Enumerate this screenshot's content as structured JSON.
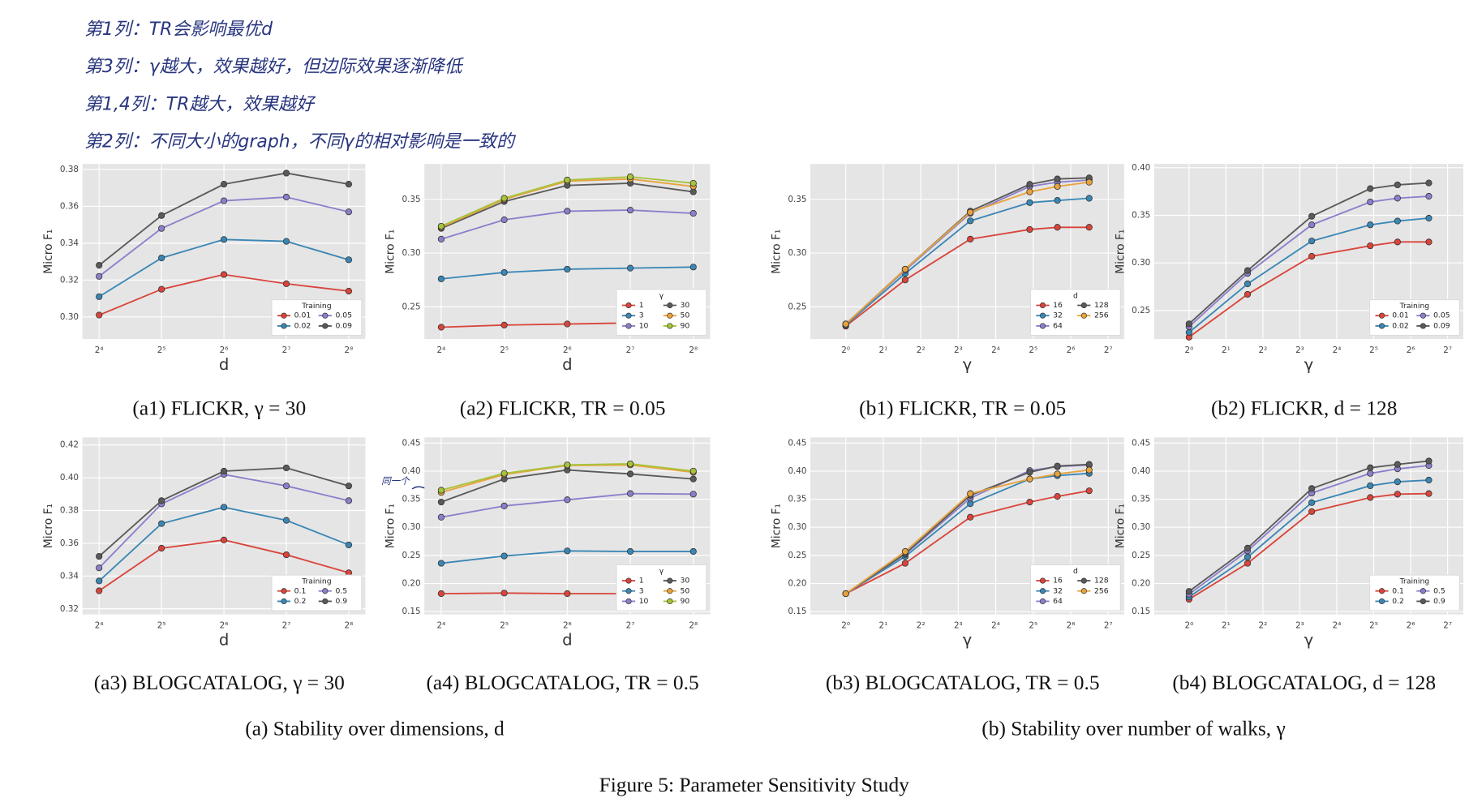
{
  "notes": [
    "第1列：TR会影响最优d",
    "第3列：γ越大，效果越好，但边际效果逐渐降低",
    "第1,4列：TR越大，效果越好",
    "第2列：不同大小的graph，不同γ的相对影响是一致的"
  ],
  "margin_note": "同一个",
  "group_captions": [
    "(a) Stability over dimensions, d",
    "(b) Stability over number of walks, γ"
  ],
  "figure_caption": "Figure 5: Parameter Sensitivity Study",
  "chart_data": [
    {
      "type": "line",
      "title": "(a1) FLICKR, γ = 30",
      "xlabel": "d",
      "ylabel": "Micro F₁",
      "legend_title": "Training",
      "xscale": "log",
      "x": [
        16,
        32,
        64,
        128,
        256
      ],
      "xlim": [
        13.3,
        308
      ],
      "xticks": [
        {
          "value": 16,
          "label": "2⁴"
        },
        {
          "value": 32,
          "label": "2⁵"
        },
        {
          "value": 64,
          "label": "2⁶"
        },
        {
          "value": 128,
          "label": "2⁷"
        },
        {
          "value": 256,
          "label": "2⁸"
        }
      ],
      "ylim": [
        0.288,
        0.383
      ],
      "yticks": [
        {
          "value": 0.3,
          "label": "0.30"
        },
        0.32,
        0.34,
        0.36,
        0.38
      ],
      "series": [
        {
          "name": "0.01",
          "color": "#d9453b",
          "values": [
            0.301,
            0.315,
            0.323,
            0.318,
            0.314
          ]
        },
        {
          "name": "0.02",
          "color": "#3a87b5",
          "values": [
            0.311,
            0.332,
            0.342,
            0.341,
            0.331
          ]
        },
        {
          "name": "0.05",
          "color": "#8b7fcc",
          "values": [
            0.322,
            0.348,
            0.363,
            0.365,
            0.357
          ]
        },
        {
          "name": "0.09",
          "color": "#5a5a5a",
          "values": [
            0.328,
            0.355,
            0.372,
            0.378,
            0.372
          ]
        }
      ]
    },
    {
      "type": "line",
      "title": "(a2) FLICKR, TR = 0.05",
      "xlabel": "d",
      "ylabel": "Micro F₁",
      "legend_title": "γ",
      "xscale": "log",
      "x": [
        16,
        32,
        64,
        128,
        256
      ],
      "xlim": [
        13.3,
        308
      ],
      "xticks": [
        {
          "value": 16,
          "label": "2⁴"
        },
        {
          "value": 32,
          "label": "2⁵"
        },
        {
          "value": 64,
          "label": "2⁶"
        },
        {
          "value": 128,
          "label": "2⁷"
        },
        {
          "value": 256,
          "label": "2⁸"
        }
      ],
      "ylim": [
        0.22,
        0.383
      ],
      "yticks": [
        0.25,
        {
          "value": 0.3,
          "label": "0.30"
        },
        0.35
      ],
      "series": [
        {
          "name": "1",
          "color": "#d9453b",
          "values": [
            0.231,
            0.233,
            0.234,
            0.235,
            0.236
          ]
        },
        {
          "name": "3",
          "color": "#3a87b5",
          "values": [
            0.276,
            0.282,
            0.285,
            0.286,
            0.287
          ]
        },
        {
          "name": "10",
          "color": "#8b7fcc",
          "values": [
            0.313,
            0.331,
            0.339,
            0.34,
            0.337
          ]
        },
        {
          "name": "30",
          "color": "#5a5a5a",
          "values": [
            0.323,
            0.348,
            0.363,
            0.365,
            0.357
          ]
        },
        {
          "name": "50",
          "color": "#e8a33c",
          "values": [
            0.324,
            0.35,
            0.367,
            0.369,
            0.362
          ]
        },
        {
          "name": "90",
          "color": "#a6c43a",
          "values": [
            0.325,
            0.351,
            0.368,
            0.371,
            0.365
          ]
        }
      ]
    },
    {
      "type": "line",
      "title": "(b1) FLICKR, TR = 0.05",
      "xlabel": "γ",
      "ylabel": "Micro F₁",
      "legend_title": "d",
      "xscale": "log",
      "x": [
        1,
        3,
        10,
        30,
        50,
        90
      ],
      "xlim": [
        0.52,
        172
      ],
      "xticks": [
        {
          "value": 1,
          "label": "2⁰"
        },
        {
          "value": 2,
          "label": "2¹"
        },
        {
          "value": 4,
          "label": "2²"
        },
        {
          "value": 8,
          "label": "2³"
        },
        {
          "value": 16,
          "label": "2⁴"
        },
        {
          "value": 32,
          "label": "2⁵"
        },
        {
          "value": 64,
          "label": "2⁶"
        },
        {
          "value": 128,
          "label": "2⁷"
        }
      ],
      "ylim": [
        0.22,
        0.383
      ],
      "yticks": [
        0.25,
        {
          "value": 0.3,
          "label": "0.30"
        },
        0.35
      ],
      "series": [
        {
          "name": "16",
          "color": "#d9453b",
          "values": [
            0.232,
            0.275,
            0.313,
            0.322,
            0.324,
            0.324
          ]
        },
        {
          "name": "32",
          "color": "#3a87b5",
          "values": [
            0.233,
            0.281,
            0.33,
            0.347,
            0.349,
            0.351
          ]
        },
        {
          "name": "64",
          "color": "#8b7fcc",
          "values": [
            0.234,
            0.284,
            0.337,
            0.362,
            0.366,
            0.368
          ]
        },
        {
          "name": "128",
          "color": "#5a5a5a",
          "values": [
            0.234,
            0.285,
            0.339,
            0.364,
            0.369,
            0.37
          ]
        },
        {
          "name": "256",
          "color": "#e8a33c",
          "values": [
            0.234,
            0.285,
            0.338,
            0.357,
            0.362,
            0.366
          ]
        }
      ]
    },
    {
      "type": "line",
      "title": "(b2) FLICKR, d = 128",
      "xlabel": "γ",
      "ylabel": "Micro F₁",
      "legend_title": "Training",
      "xscale": "log",
      "x": [
        1,
        3,
        10,
        30,
        50,
        90
      ],
      "xlim": [
        0.52,
        172
      ],
      "xticks": [
        {
          "value": 1,
          "label": "2⁰"
        },
        {
          "value": 2,
          "label": "2¹"
        },
        {
          "value": 4,
          "label": "2²"
        },
        {
          "value": 8,
          "label": "2³"
        },
        {
          "value": 16,
          "label": "2⁴"
        },
        {
          "value": 32,
          "label": "2⁵"
        },
        {
          "value": 64,
          "label": "2⁶"
        },
        {
          "value": 128,
          "label": "2⁷"
        }
      ],
      "ylim": [
        0.22,
        0.404
      ],
      "yticks": [
        0.25,
        {
          "value": 0.3,
          "label": "0.30"
        },
        0.35,
        {
          "value": 0.4,
          "label": "0.40"
        }
      ],
      "series": [
        {
          "name": "0.01",
          "color": "#d9453b",
          "values": [
            0.222,
            0.267,
            0.307,
            0.318,
            0.322,
            0.322
          ]
        },
        {
          "name": "0.02",
          "color": "#3a87b5",
          "values": [
            0.227,
            0.278,
            0.323,
            0.34,
            0.344,
            0.347
          ]
        },
        {
          "name": "0.05",
          "color": "#8b7fcc",
          "values": [
            0.233,
            0.289,
            0.34,
            0.364,
            0.368,
            0.37
          ]
        },
        {
          "name": "0.09",
          "color": "#5a5a5a",
          "values": [
            0.236,
            0.292,
            0.349,
            0.378,
            0.382,
            0.384
          ]
        }
      ]
    },
    {
      "type": "line",
      "title": "(a3) BLOGCATALOG, γ = 30",
      "xlabel": "d",
      "ylabel": "Micro F₁",
      "legend_title": "Training",
      "xscale": "log",
      "x": [
        16,
        32,
        64,
        128,
        256
      ],
      "xlim": [
        13.3,
        308
      ],
      "xticks": [
        {
          "value": 16,
          "label": "2⁴"
        },
        {
          "value": 32,
          "label": "2⁵"
        },
        {
          "value": 64,
          "label": "2⁶"
        },
        {
          "value": 128,
          "label": "2⁷"
        },
        {
          "value": 256,
          "label": "2⁸"
        }
      ],
      "ylim": [
        0.3166,
        0.4246
      ],
      "yticks": [
        0.32,
        0.34,
        0.36,
        0.38,
        {
          "value": 0.4,
          "label": "0.40"
        },
        0.42
      ],
      "series": [
        {
          "name": "0.1",
          "color": "#d9453b",
          "values": [
            0.331,
            0.357,
            0.362,
            0.353,
            0.342
          ]
        },
        {
          "name": "0.2",
          "color": "#3a87b5",
          "values": [
            0.337,
            0.372,
            0.382,
            0.374,
            0.359
          ]
        },
        {
          "name": "0.5",
          "color": "#8b7fcc",
          "values": [
            0.345,
            0.384,
            0.402,
            0.395,
            0.386
          ]
        },
        {
          "name": "0.9",
          "color": "#5a5a5a",
          "values": [
            0.352,
            0.386,
            0.404,
            0.406,
            0.395
          ]
        }
      ]
    },
    {
      "type": "line",
      "title": "(a4) BLOGCATALOG, TR = 0.5",
      "xlabel": "d",
      "ylabel": "Micro F₁",
      "legend_title": "γ",
      "xscale": "log",
      "x": [
        16,
        32,
        64,
        128,
        256
      ],
      "xlim": [
        13.3,
        308
      ],
      "xticks": [
        {
          "value": 16,
          "label": "2⁴"
        },
        {
          "value": 32,
          "label": "2⁵"
        },
        {
          "value": 64,
          "label": "2⁶"
        },
        {
          "value": 128,
          "label": "2⁷"
        },
        {
          "value": 256,
          "label": "2⁸"
        }
      ],
      "ylim": [
        0.145,
        0.46
      ],
      "yticks": [
        0.15,
        {
          "value": 0.2,
          "label": "0.20"
        },
        0.25,
        {
          "value": 0.3,
          "label": "0.30"
        },
        0.35,
        {
          "value": 0.4,
          "label": "0.40"
        },
        0.45
      ],
      "series": [
        {
          "name": "1",
          "color": "#d9453b",
          "values": [
            0.182,
            0.183,
            0.182,
            0.182,
            0.183
          ]
        },
        {
          "name": "3",
          "color": "#3a87b5",
          "values": [
            0.236,
            0.249,
            0.258,
            0.257,
            0.257
          ]
        },
        {
          "name": "10",
          "color": "#8b7fcc",
          "values": [
            0.318,
            0.338,
            0.349,
            0.36,
            0.359
          ]
        },
        {
          "name": "30",
          "color": "#5a5a5a",
          "values": [
            0.345,
            0.386,
            0.402,
            0.395,
            0.386
          ]
        },
        {
          "name": "50",
          "color": "#e8a33c",
          "values": [
            0.362,
            0.394,
            0.41,
            0.411,
            0.398
          ]
        },
        {
          "name": "90",
          "color": "#a6c43a",
          "values": [
            0.366,
            0.396,
            0.411,
            0.413,
            0.4
          ]
        }
      ]
    },
    {
      "type": "line",
      "title": "(b3) BLOGCATALOG, TR = 0.5",
      "xlabel": "γ",
      "ylabel": "Micro F₁",
      "legend_title": "d",
      "xscale": "log",
      "x": [
        1,
        3,
        10,
        30,
        50,
        90
      ],
      "xlim": [
        0.52,
        172
      ],
      "xticks": [
        {
          "value": 1,
          "label": "2⁰"
        },
        {
          "value": 2,
          "label": "2¹"
        },
        {
          "value": 4,
          "label": "2²"
        },
        {
          "value": 8,
          "label": "2³"
        },
        {
          "value": 16,
          "label": "2⁴"
        },
        {
          "value": 32,
          "label": "2⁵"
        },
        {
          "value": 64,
          "label": "2⁶"
        },
        {
          "value": 128,
          "label": "2⁷"
        }
      ],
      "ylim": [
        0.145,
        0.46
      ],
      "yticks": [
        0.15,
        {
          "value": 0.2,
          "label": "0.20"
        },
        0.25,
        {
          "value": 0.3,
          "label": "0.30"
        },
        0.35,
        {
          "value": 0.4,
          "label": "0.40"
        },
        0.45
      ],
      "series": [
        {
          "name": "16",
          "color": "#d9453b",
          "values": [
            0.182,
            0.236,
            0.318,
            0.345,
            0.355,
            0.365
          ]
        },
        {
          "name": "32",
          "color": "#3a87b5",
          "values": [
            0.182,
            0.248,
            0.342,
            0.386,
            0.392,
            0.396
          ]
        },
        {
          "name": "64",
          "color": "#8b7fcc",
          "values": [
            0.182,
            0.252,
            0.352,
            0.401,
            0.408,
            0.411
          ]
        },
        {
          "name": "128",
          "color": "#5a5a5a",
          "values": [
            0.182,
            0.253,
            0.357,
            0.398,
            0.409,
            0.412
          ]
        },
        {
          "name": "256",
          "color": "#e8a33c",
          "values": [
            0.182,
            0.257,
            0.36,
            0.386,
            0.395,
            0.402
          ]
        }
      ]
    },
    {
      "type": "line",
      "title": "(b4) BLOGCATALOG, d = 128",
      "xlabel": "γ",
      "ylabel": "Micro F₁",
      "legend_title": "Training",
      "xscale": "log",
      "x": [
        1,
        3,
        10,
        30,
        50,
        90
      ],
      "xlim": [
        0.52,
        172
      ],
      "xticks": [
        {
          "value": 1,
          "label": "2⁰"
        },
        {
          "value": 2,
          "label": "2¹"
        },
        {
          "value": 4,
          "label": "2²"
        },
        {
          "value": 8,
          "label": "2³"
        },
        {
          "value": 16,
          "label": "2⁴"
        },
        {
          "value": 32,
          "label": "2⁵"
        },
        {
          "value": 64,
          "label": "2⁶"
        },
        {
          "value": 128,
          "label": "2⁷"
        }
      ],
      "ylim": [
        0.145,
        0.46
      ],
      "yticks": [
        0.15,
        {
          "value": 0.2,
          "label": "0.20"
        },
        0.25,
        {
          "value": 0.3,
          "label": "0.30"
        },
        0.35,
        {
          "value": 0.4,
          "label": "0.40"
        },
        0.45
      ],
      "series": [
        {
          "name": "0.1",
          "color": "#d9453b",
          "values": [
            0.172,
            0.236,
            0.328,
            0.353,
            0.359,
            0.36
          ]
        },
        {
          "name": "0.2",
          "color": "#3a87b5",
          "values": [
            0.176,
            0.247,
            0.344,
            0.374,
            0.381,
            0.384
          ]
        },
        {
          "name": "0.5",
          "color": "#8b7fcc",
          "values": [
            0.181,
            0.258,
            0.361,
            0.396,
            0.404,
            0.41
          ]
        },
        {
          "name": "0.9",
          "color": "#5a5a5a",
          "values": [
            0.186,
            0.263,
            0.369,
            0.406,
            0.412,
            0.418
          ]
        }
      ]
    }
  ]
}
